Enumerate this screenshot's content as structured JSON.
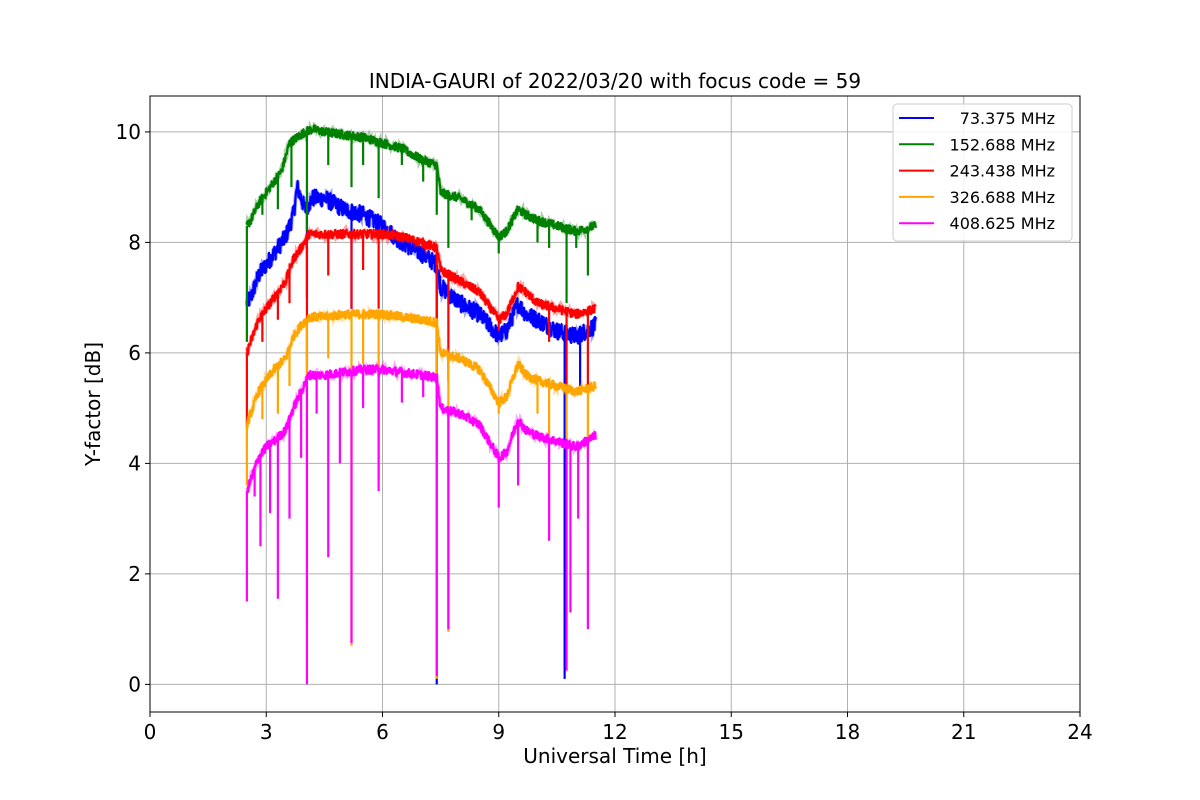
{
  "chart_data": {
    "type": "line",
    "title": "INDIA-GAURI of 2022/03/20 with focus code = 59",
    "xlabel": "Universal Time [h]",
    "ylabel": "Y-factor [dB]",
    "xlim": [
      0,
      24
    ],
    "ylim": [
      -0.5,
      10.65
    ],
    "xticks": [
      0,
      3,
      6,
      9,
      12,
      15,
      18,
      21,
      24
    ],
    "yticks": [
      0,
      2,
      4,
      6,
      8,
      10
    ],
    "grid": true,
    "legend_position": "top-right",
    "series": [
      {
        "name": "73.375 MHz",
        "color": "#0000ff",
        "points": [
          [
            2.5,
            6.9
          ],
          [
            2.6,
            7.0
          ],
          [
            2.8,
            7.4
          ],
          [
            3.0,
            7.6
          ],
          [
            3.2,
            7.8
          ],
          [
            3.5,
            8.1
          ],
          [
            3.7,
            8.5
          ],
          [
            3.8,
            9.0
          ],
          [
            4.0,
            8.6
          ],
          [
            4.2,
            8.8
          ],
          [
            4.5,
            8.8
          ],
          [
            5.0,
            8.6
          ],
          [
            5.5,
            8.5
          ],
          [
            6.0,
            8.3
          ],
          [
            6.5,
            8.0
          ],
          [
            7.0,
            7.8
          ],
          [
            7.4,
            7.6
          ],
          [
            7.5,
            7.2
          ],
          [
            8.0,
            6.9
          ],
          [
            8.5,
            6.7
          ],
          [
            9.0,
            6.3
          ],
          [
            9.2,
            6.4
          ],
          [
            9.5,
            6.9
          ],
          [
            9.7,
            6.7
          ],
          [
            10.0,
            6.6
          ],
          [
            10.5,
            6.4
          ],
          [
            11.0,
            6.3
          ],
          [
            11.5,
            6.5
          ]
        ],
        "dips": [
          [
            4.05,
            7.0
          ],
          [
            5.2,
            6.8
          ],
          [
            7.4,
            0.0
          ],
          [
            10.7,
            0.1
          ],
          [
            11.1,
            5.4
          ]
        ]
      },
      {
        "name": "152.688 MHz",
        "color": "#008000",
        "points": [
          [
            2.5,
            8.3
          ],
          [
            2.6,
            8.4
          ],
          [
            2.8,
            8.7
          ],
          [
            3.0,
            8.9
          ],
          [
            3.2,
            9.1
          ],
          [
            3.4,
            9.3
          ],
          [
            3.6,
            9.8
          ],
          [
            3.8,
            9.9
          ],
          [
            4.0,
            10.0
          ],
          [
            4.2,
            10.05
          ],
          [
            4.5,
            10.0
          ],
          [
            5.0,
            9.95
          ],
          [
            5.5,
            9.9
          ],
          [
            6.0,
            9.8
          ],
          [
            6.5,
            9.7
          ],
          [
            7.0,
            9.5
          ],
          [
            7.4,
            9.4
          ],
          [
            7.5,
            8.9
          ],
          [
            8.0,
            8.8
          ],
          [
            8.5,
            8.6
          ],
          [
            9.0,
            8.1
          ],
          [
            9.2,
            8.2
          ],
          [
            9.5,
            8.6
          ],
          [
            9.7,
            8.5
          ],
          [
            10.0,
            8.4
          ],
          [
            10.5,
            8.3
          ],
          [
            11.0,
            8.2
          ],
          [
            11.5,
            8.3
          ]
        ],
        "dips": [
          [
            2.5,
            6.2
          ],
          [
            2.9,
            8.5
          ],
          [
            3.3,
            8.6
          ],
          [
            3.65,
            9.0
          ],
          [
            4.05,
            8.2
          ],
          [
            4.6,
            9.4
          ],
          [
            5.2,
            9.0
          ],
          [
            5.5,
            9.4
          ],
          [
            5.9,
            8.8
          ],
          [
            6.5,
            9.4
          ],
          [
            7.05,
            9.1
          ],
          [
            7.4,
            8.5
          ],
          [
            7.7,
            7.9
          ],
          [
            8.3,
            8.4
          ],
          [
            9.0,
            7.8
          ],
          [
            10.0,
            8.0
          ],
          [
            10.3,
            7.9
          ],
          [
            10.75,
            6.9
          ],
          [
            11.0,
            7.9
          ],
          [
            11.3,
            7.4
          ]
        ]
      },
      {
        "name": "243.438 MHz",
        "color": "#ff0000",
        "points": [
          [
            2.5,
            6.0
          ],
          [
            2.6,
            6.2
          ],
          [
            2.8,
            6.6
          ],
          [
            3.0,
            6.8
          ],
          [
            3.2,
            7.0
          ],
          [
            3.5,
            7.3
          ],
          [
            3.7,
            7.7
          ],
          [
            3.9,
            7.9
          ],
          [
            4.1,
            8.15
          ],
          [
            4.5,
            8.15
          ],
          [
            5.0,
            8.15
          ],
          [
            5.5,
            8.15
          ],
          [
            6.0,
            8.15
          ],
          [
            6.5,
            8.1
          ],
          [
            7.0,
            8.0
          ],
          [
            7.4,
            7.9
          ],
          [
            7.5,
            7.5
          ],
          [
            8.0,
            7.3
          ],
          [
            8.5,
            7.1
          ],
          [
            9.0,
            6.6
          ],
          [
            9.2,
            6.7
          ],
          [
            9.5,
            7.2
          ],
          [
            9.7,
            7.1
          ],
          [
            10.0,
            6.9
          ],
          [
            10.5,
            6.8
          ],
          [
            11.0,
            6.7
          ],
          [
            11.5,
            6.8
          ]
        ],
        "dips": [
          [
            2.5,
            4.7
          ],
          [
            2.9,
            6.2
          ],
          [
            3.3,
            6.6
          ],
          [
            3.6,
            6.9
          ],
          [
            4.05,
            5.7
          ],
          [
            4.6,
            7.4
          ],
          [
            5.2,
            6.8
          ],
          [
            5.5,
            7.5
          ],
          [
            5.9,
            6.8
          ],
          [
            7.4,
            4.0
          ],
          [
            7.7,
            5.5
          ],
          [
            9.0,
            6.4
          ],
          [
            10.3,
            6.2
          ],
          [
            10.75,
            5.4
          ],
          [
            11.3,
            5.3
          ]
        ]
      },
      {
        "name": "326.688 MHz",
        "color": "#ffa500",
        "points": [
          [
            2.5,
            4.7
          ],
          [
            2.6,
            4.9
          ],
          [
            2.8,
            5.3
          ],
          [
            3.0,
            5.5
          ],
          [
            3.2,
            5.7
          ],
          [
            3.5,
            5.9
          ],
          [
            3.7,
            6.3
          ],
          [
            3.9,
            6.5
          ],
          [
            4.1,
            6.65
          ],
          [
            4.5,
            6.65
          ],
          [
            5.0,
            6.7
          ],
          [
            5.5,
            6.7
          ],
          [
            6.0,
            6.7
          ],
          [
            6.5,
            6.65
          ],
          [
            7.0,
            6.6
          ],
          [
            7.4,
            6.55
          ],
          [
            7.5,
            6.0
          ],
          [
            8.0,
            5.9
          ],
          [
            8.5,
            5.7
          ],
          [
            9.0,
            5.1
          ],
          [
            9.2,
            5.2
          ],
          [
            9.5,
            5.8
          ],
          [
            9.7,
            5.6
          ],
          [
            10.0,
            5.5
          ],
          [
            10.5,
            5.4
          ],
          [
            11.0,
            5.3
          ],
          [
            11.5,
            5.4
          ]
        ],
        "dips": [
          [
            2.5,
            3.6
          ],
          [
            2.9,
            4.8
          ],
          [
            3.3,
            4.9
          ],
          [
            3.6,
            5.4
          ],
          [
            4.05,
            1.1
          ],
          [
            4.6,
            5.9
          ],
          [
            5.2,
            0.7
          ],
          [
            5.5,
            5.8
          ],
          [
            5.9,
            3.7
          ],
          [
            7.4,
            0.1
          ],
          [
            7.7,
            0.95
          ],
          [
            9.0,
            4.9
          ],
          [
            10.0,
            4.9
          ],
          [
            10.3,
            4.5
          ],
          [
            10.75,
            4.3
          ],
          [
            11.3,
            4.1
          ]
        ]
      },
      {
        "name": "408.625 MHz",
        "color": "#ff00ff",
        "points": [
          [
            2.5,
            3.5
          ],
          [
            2.6,
            3.7
          ],
          [
            2.8,
            4.1
          ],
          [
            3.0,
            4.3
          ],
          [
            3.2,
            4.4
          ],
          [
            3.5,
            4.6
          ],
          [
            3.7,
            5.0
          ],
          [
            3.9,
            5.3
          ],
          [
            4.1,
            5.6
          ],
          [
            4.5,
            5.6
          ],
          [
            5.0,
            5.65
          ],
          [
            5.5,
            5.7
          ],
          [
            6.0,
            5.7
          ],
          [
            6.5,
            5.65
          ],
          [
            7.0,
            5.6
          ],
          [
            7.4,
            5.55
          ],
          [
            7.5,
            5.0
          ],
          [
            8.0,
            4.9
          ],
          [
            8.5,
            4.7
          ],
          [
            9.0,
            4.1
          ],
          [
            9.2,
            4.2
          ],
          [
            9.5,
            4.8
          ],
          [
            9.7,
            4.6
          ],
          [
            10.0,
            4.5
          ],
          [
            10.5,
            4.4
          ],
          [
            11.0,
            4.3
          ],
          [
            11.5,
            4.5
          ]
        ],
        "dips": [
          [
            2.5,
            1.5
          ],
          [
            2.7,
            3.4
          ],
          [
            2.85,
            2.5
          ],
          [
            3.1,
            3.1
          ],
          [
            3.3,
            1.55
          ],
          [
            3.6,
            3.0
          ],
          [
            3.9,
            4.1
          ],
          [
            4.05,
            0.0
          ],
          [
            4.3,
            4.9
          ],
          [
            4.6,
            2.3
          ],
          [
            4.9,
            4.0
          ],
          [
            5.2,
            0.75
          ],
          [
            5.5,
            5.0
          ],
          [
            5.9,
            3.5
          ],
          [
            6.5,
            5.1
          ],
          [
            7.05,
            5.2
          ],
          [
            7.4,
            0.15
          ],
          [
            7.7,
            1.0
          ],
          [
            9.0,
            3.2
          ],
          [
            9.5,
            3.6
          ],
          [
            10.3,
            2.6
          ],
          [
            10.75,
            0.25
          ],
          [
            10.85,
            1.3
          ],
          [
            11.05,
            3.0
          ],
          [
            11.3,
            1.0
          ]
        ]
      }
    ]
  }
}
